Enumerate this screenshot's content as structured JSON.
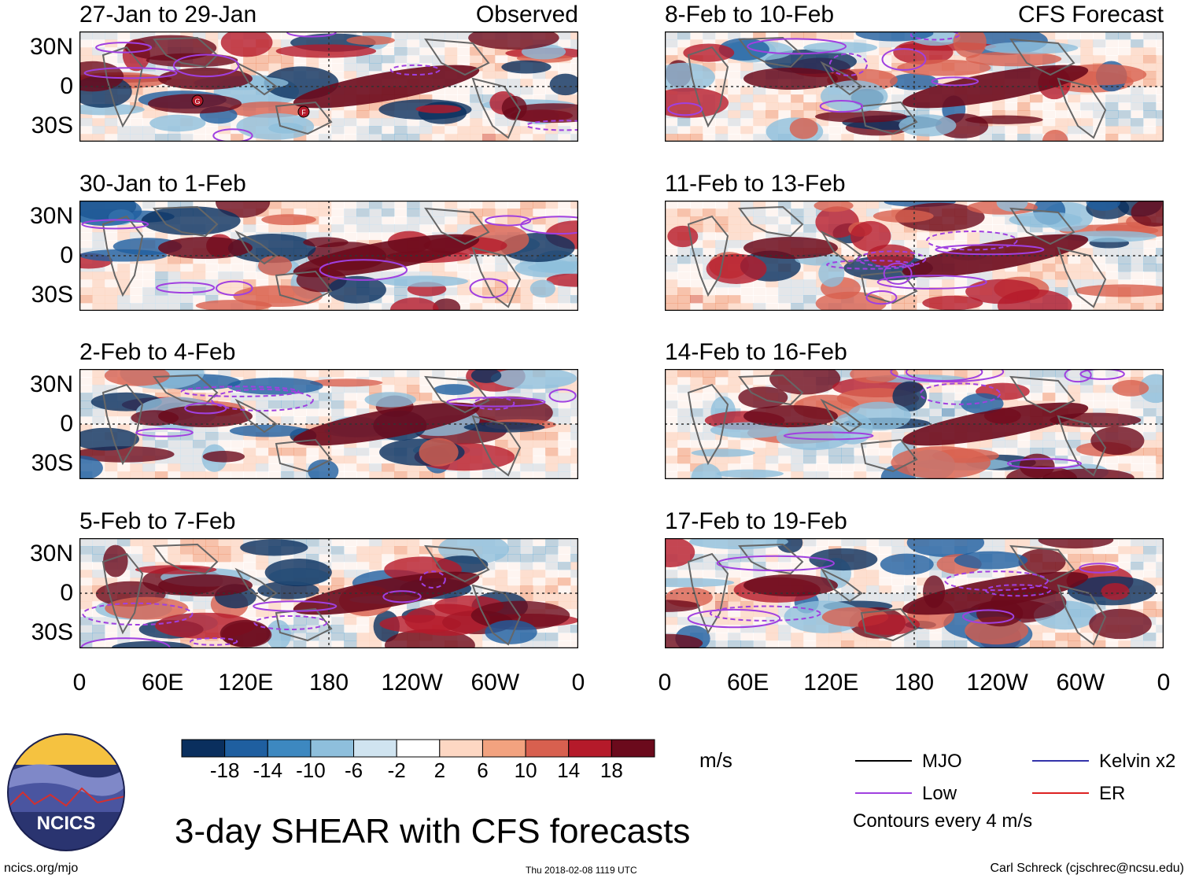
{
  "chart_data": {
    "type": "heatmap",
    "title": "3-day SHEAR with CFS forecasts",
    "units": "m/s",
    "x_tick_labels": [
      "0",
      "60E",
      "120E",
      "180",
      "120W",
      "60W",
      "0"
    ],
    "y_tick_labels": [
      "30N",
      "0",
      "30S"
    ],
    "columns": [
      {
        "header": "Observed",
        "panels": [
          "27-Jan to 29-Jan",
          "30-Jan to 1-Feb",
          "2-Feb to 4-Feb",
          "5-Feb to 7-Feb"
        ]
      },
      {
        "header": "CFS Forecast",
        "panels": [
          "8-Feb to 10-Feb",
          "11-Feb to 13-Feb",
          "14-Feb to 16-Feb",
          "17-Feb to 19-Feb"
        ]
      }
    ],
    "colorbar": {
      "labels": [
        "-18",
        "-14",
        "-10",
        "-6",
        "-2",
        "2",
        "6",
        "10",
        "14",
        "18"
      ],
      "colors": [
        "#0a2f5e",
        "#1f5fa0",
        "#3d88c0",
        "#8ebfdc",
        "#d0e4f0",
        "#ffffff",
        "#fdd7c3",
        "#f2a27f",
        "#d8604f",
        "#b51a2a",
        "#6b0a1c"
      ]
    },
    "legend": [
      {
        "label": "MJO",
        "color": "#000000"
      },
      {
        "label": "Kelvin x2",
        "color": "#3333aa"
      },
      {
        "label": "Low",
        "color": "#a040e0"
      },
      {
        "label": "ER",
        "color": "#dd2222"
      }
    ],
    "contour_note": "Contours every 4 m/s",
    "storm_markers": [
      "G",
      "F"
    ]
  },
  "footer": {
    "logo_text": "NCICS",
    "url": "ncics.org/mjo",
    "timestamp": "Thu 2018-02-08 1119 UTC",
    "credit": "Carl Schreck (cjschrec@ncsu.edu)"
  }
}
